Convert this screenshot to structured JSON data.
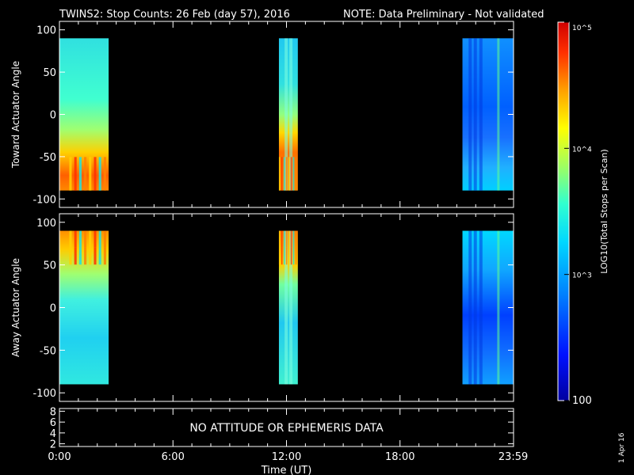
{
  "header": {
    "title": "TWINS2: Stop Counts: 26 Feb (day  57), 2016",
    "note": "NOTE: Data Preliminary - Not validated",
    "note_color": "#ff2a2a"
  },
  "footer": {
    "run_date": "1 Apr 16"
  },
  "chart_data": [
    {
      "type": "heatmap",
      "panel": "top",
      "ylabel": "Toward Actuator Angle",
      "ylim": [
        -110,
        110
      ],
      "yticks": [
        -100,
        -50,
        0,
        50,
        100
      ],
      "xlim": [
        0,
        24
      ],
      "data_y_range": [
        -90,
        90
      ],
      "segments": [
        {
          "t_start": 0.0,
          "t_end": 2.6,
          "profile": "toward-1"
        },
        {
          "t_start": 11.6,
          "t_end": 12.6,
          "profile": "toward-2"
        },
        {
          "t_start": 21.3,
          "t_end": 24.0,
          "profile": "toward-3"
        }
      ],
      "log10_scale": true
    },
    {
      "type": "heatmap",
      "panel": "middle",
      "ylabel": "Away Actuator Angle",
      "ylim": [
        -110,
        110
      ],
      "yticks": [
        -100,
        -50,
        0,
        50,
        100
      ],
      "xlim": [
        0,
        24
      ],
      "data_y_range": [
        -90,
        90
      ],
      "segments": [
        {
          "t_start": 0.0,
          "t_end": 2.6,
          "profile": "away-1"
        },
        {
          "t_start": 11.6,
          "t_end": 12.6,
          "profile": "away-2"
        },
        {
          "t_start": 21.3,
          "t_end": 24.0,
          "profile": "away-3"
        }
      ],
      "log10_scale": true
    },
    {
      "type": "line",
      "panel": "bottom",
      "ylim": [
        1.5,
        8.5
      ],
      "yticks": [
        2,
        4,
        6,
        8
      ],
      "xlim": [
        0,
        24
      ],
      "message": "NO ATTITUDE OR EPHEMERIS DATA",
      "xlabel": "Time (UT)",
      "xticks": [
        {
          "t": 0,
          "label": "0:00"
        },
        {
          "t": 6,
          "label": "6:00"
        },
        {
          "t": 12,
          "label": "12:00"
        },
        {
          "t": 18,
          "label": "18:00"
        },
        {
          "t": 23.983,
          "label": "23:59"
        }
      ]
    }
  ],
  "colorbar": {
    "label": "LOG10(Total Stops per Scan)",
    "min_label": "100",
    "mid_label": "10^3",
    "top_label": "10^5",
    "ticks": [
      {
        "value": 100,
        "label": "100"
      },
      {
        "value": 1000,
        "label": "10^3"
      },
      {
        "value": 10000,
        "label": "10^4"
      },
      {
        "value": 100000,
        "label": "10^5"
      }
    ],
    "colors": [
      "#0000a0",
      "#0010ff",
      "#0080ff",
      "#00d8ff",
      "#30ffd0",
      "#a0ff60",
      "#ffff00",
      "#ffa000",
      "#ff3000",
      "#d00000"
    ]
  }
}
